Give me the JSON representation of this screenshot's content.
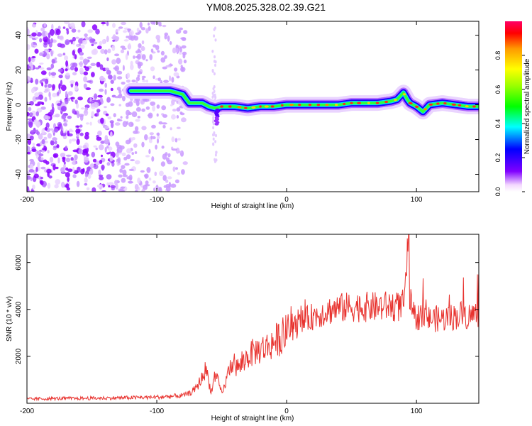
{
  "figure_title": "YM08.2025.328.02.39.G21",
  "chart_data": [
    {
      "type": "heatmap",
      "title": "YM08.2025.328.02.39.G21",
      "xlabel": "Height of straight line (km)",
      "ylabel": "Frequency (Hz)",
      "xlim": [
        -200,
        148
      ],
      "ylim": [
        -50,
        48
      ],
      "xticks": [
        -200,
        -100,
        0,
        100
      ],
      "xtick_labels": [
        "-200",
        "-100",
        "0",
        "100"
      ],
      "yticks": [
        -40,
        -20,
        0,
        20,
        40
      ],
      "ytick_labels": [
        "-40",
        "-20",
        "0",
        "20",
        "40"
      ],
      "colorbar": {
        "label": "Normalized spectral amplitude",
        "range": [
          0,
          1
        ],
        "ticks": [
          0.0,
          0.2,
          0.4,
          0.6,
          0.8
        ],
        "tick_labels": [
          "0.0",
          "0.2",
          "0.4",
          "0.6",
          "0.8"
        ],
        "colormap": "rainbow"
      },
      "ridge": {
        "description": "frequency of spectral peak vs height",
        "x": [
          -120,
          -110,
          -100,
          -90,
          -80,
          -75,
          -70,
          -65,
          -60,
          -55,
          -50,
          -40,
          -30,
          -20,
          -10,
          0,
          10,
          20,
          30,
          40,
          50,
          60,
          70,
          80,
          85,
          90,
          93,
          95,
          100,
          105,
          110,
          120,
          130,
          140,
          148
        ],
        "y": [
          8,
          8,
          8,
          8,
          6,
          1,
          1,
          1,
          -1,
          -2,
          -1,
          -1,
          -2,
          -1,
          -1,
          0,
          0,
          0,
          0,
          0,
          1,
          1,
          1,
          2,
          3,
          7,
          3,
          1,
          -1,
          -4,
          0,
          1,
          0,
          -1,
          -1
        ]
      },
      "noise_region": [
        -200,
        -78
      ]
    },
    {
      "type": "line",
      "xlabel": "Height of straight line (km)",
      "ylabel": "SNR (10 * v/v)",
      "xlim": [
        -200,
        148
      ],
      "ylim": [
        0,
        7200
      ],
      "xticks": [
        -200,
        -100,
        0,
        100
      ],
      "xtick_labels": [
        "-200",
        "-100",
        "0",
        "100"
      ],
      "yticks": [
        2000,
        4000,
        6000
      ],
      "ytick_labels": [
        "2000",
        "4000",
        "6000"
      ],
      "series": [
        {
          "name": "SNR",
          "color": "#e8332f",
          "x": [
            -200,
            -180,
            -160,
            -140,
            -120,
            -100,
            -90,
            -80,
            -75,
            -70,
            -65,
            -62,
            -60,
            -58,
            -55,
            -52,
            -50,
            -48,
            -45,
            -42,
            -40,
            -35,
            -30,
            -25,
            -20,
            -15,
            -10,
            -5,
            0,
            5,
            10,
            15,
            20,
            25,
            30,
            35,
            40,
            50,
            60,
            70,
            80,
            85,
            90,
            92,
            93,
            94,
            95,
            97,
            100,
            105,
            110,
            120,
            130,
            135,
            140,
            148
          ],
          "y": [
            180,
            200,
            210,
            220,
            240,
            260,
            290,
            330,
            420,
            620,
            1100,
            1500,
            900,
            500,
            1200,
            800,
            400,
            700,
            1300,
            1800,
            1500,
            1600,
            2000,
            2200,
            2300,
            2400,
            2600,
            2800,
            3000,
            3200,
            3350,
            3550,
            3700,
            3800,
            3900,
            4000,
            4050,
            4100,
            4100,
            4100,
            4150,
            4100,
            4200,
            5000,
            7200,
            3400,
            4500,
            3600,
            3700,
            3650,
            3600,
            3600,
            3700,
            3800,
            3700,
            3850
          ]
        }
      ]
    }
  ]
}
